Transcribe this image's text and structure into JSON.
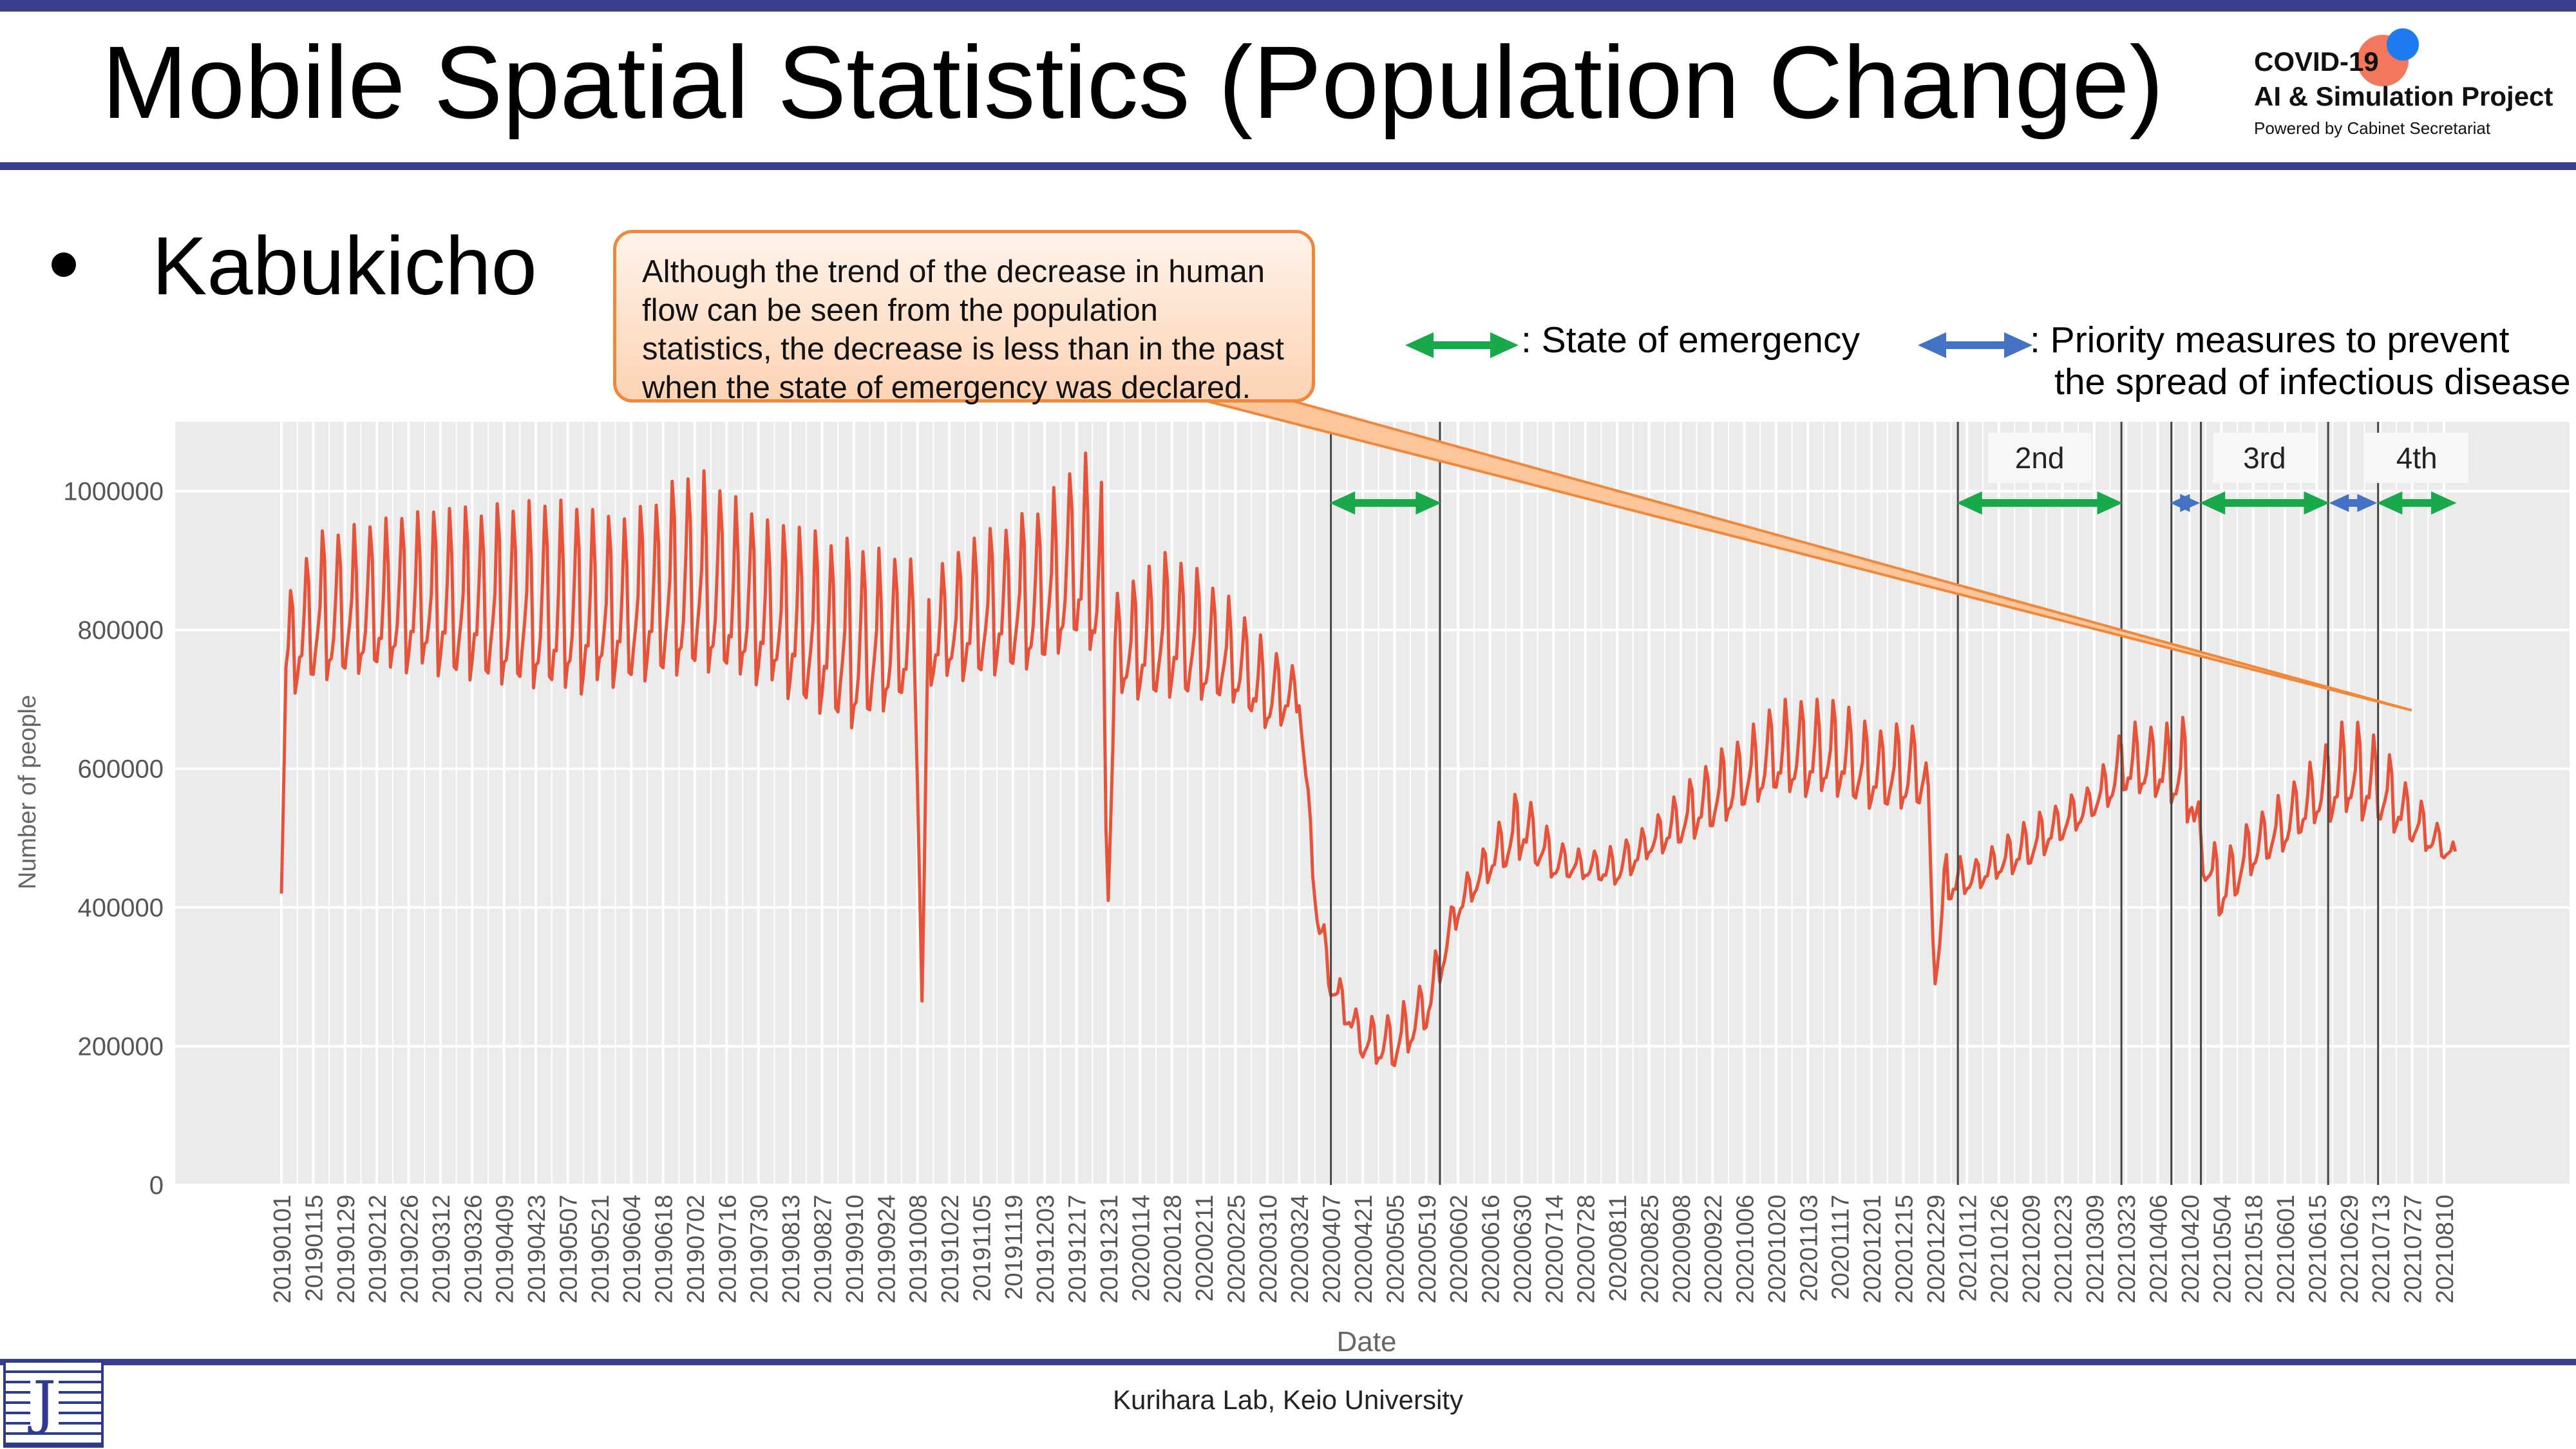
{
  "slide": {
    "title": "Mobile Spatial Statistics (Population Change)",
    "brand": {
      "line1": "COVID-19",
      "line2": "AI & Simulation Project",
      "line3": "Powered by Cabinet Secretariat",
      "red": "#f26b4f",
      "blue": "#1e7bf0"
    },
    "bullet": "Kabukicho",
    "callout_lines": [
      "Although the trend of the decrease in human",
      "flow can be seen from the population",
      "statistics, the decrease is less than in the past",
      "when the state of emergency was declared."
    ],
    "legend": {
      "emergency": ": State of emergency",
      "priority_line1": ": Priority measures to prevent",
      "priority_line2": "the spread of infectious disease",
      "emergency_color": "#19a84a",
      "priority_color": "#4472c4"
    },
    "footer": "Kurihara Lab, Keio University",
    "logo_text": "J"
  },
  "chart_data": {
    "type": "line",
    "xlabel": "Date",
    "ylabel": "Number of people",
    "ylim": [
      0,
      1100000
    ],
    "yticks": [
      0,
      200000,
      400000,
      600000,
      800000,
      1000000
    ],
    "ytick_labels": [
      "0",
      "200000",
      "400000",
      "600000",
      "800000",
      "1000000"
    ],
    "x_tick_labels": [
      "20190101",
      "20190115",
      "20190129",
      "20190212",
      "20190226",
      "20190312",
      "20190326",
      "20190409",
      "20190423",
      "20190507",
      "20190521",
      "20190604",
      "20190618",
      "20190702",
      "20190716",
      "20190730",
      "20190813",
      "20190827",
      "20190910",
      "20190924",
      "20191008",
      "20191022",
      "20191105",
      "20191119",
      "20191203",
      "20191217",
      "20191231",
      "20200114",
      "20200128",
      "20200211",
      "20200225",
      "20200310",
      "20200324",
      "20200407",
      "20200421",
      "20200505",
      "20200519",
      "20200602",
      "20200616",
      "20200630",
      "20200714",
      "20200728",
      "20200811",
      "20200825",
      "20200908",
      "20200922",
      "20201006",
      "20201020",
      "20201103",
      "20201117",
      "20201201",
      "20201215",
      "20201229",
      "20210112",
      "20210126",
      "20210209",
      "20210223",
      "20210309",
      "20210323",
      "20210406",
      "20210420",
      "20210504",
      "20210518",
      "20210601",
      "20210615",
      "20210629",
      "20210713",
      "20210727",
      "20210810"
    ],
    "series_color": "#e5533a",
    "grid": true,
    "background": "#ebebeb",
    "period_labels": [
      "2nd",
      "3rd",
      "4th"
    ],
    "emergency_periods": [
      [
        "20200407",
        "20200525"
      ],
      [
        "20210108",
        "20210321"
      ],
      [
        "20210425",
        "20210620"
      ],
      [
        "20210712",
        "20210815"
      ]
    ],
    "priority_periods": [
      [
        "20210412",
        "20210424"
      ],
      [
        "20210621",
        "20210711"
      ]
    ],
    "vertical_lines": [
      "20200407",
      "20200525",
      "20210108",
      "20210321",
      "20210412",
      "20210425",
      "20210620",
      "20210712"
    ],
    "series": [
      {
        "y_envelope": [
          [
            "20190101",
            420000,
            420000
          ],
          [
            "20190103",
            700000,
            840000
          ],
          [
            "20190115",
            720000,
            940000
          ],
          [
            "20190301",
            740000,
            970000
          ],
          [
            "20190501",
            700000,
            990000
          ],
          [
            "20190601",
            720000,
            960000
          ],
          [
            "20190702",
            730000,
            1040000
          ],
          [
            "20190801",
            720000,
            960000
          ],
          [
            "20190910",
            650000,
            930000
          ],
          [
            "20191007",
            700000,
            900000
          ],
          [
            "20191010",
            265000,
            265000
          ],
          [
            "20191013",
            720000,
            880000
          ],
          [
            "20191105",
            730000,
            940000
          ],
          [
            "20191201",
            740000,
            980000
          ],
          [
            "20191220",
            780000,
            1060000
          ],
          [
            "20191228",
            720000,
            1020000
          ],
          [
            "20191231",
            410000,
            410000
          ],
          [
            "20200103",
            700000,
            850000
          ],
          [
            "20200128",
            700000,
            920000
          ],
          [
            "20200225",
            690000,
            840000
          ],
          [
            "20200310",
            650000,
            780000
          ],
          [
            "20200324",
            680000,
            740000
          ],
          [
            "20200328",
            530000,
            570000
          ],
          [
            "20200401",
            360000,
            430000
          ],
          [
            "20200407",
            270000,
            320000
          ],
          [
            "20200421",
            180000,
            240000
          ],
          [
            "20200505",
            165000,
            250000
          ],
          [
            "20200519",
            220000,
            300000
          ],
          [
            "20200602",
            380000,
            430000
          ],
          [
            "20200616",
            440000,
            500000
          ],
          [
            "20200630",
            470000,
            580000
          ],
          [
            "20200714",
            440000,
            500000
          ],
          [
            "20200728",
            440000,
            480000
          ],
          [
            "20200811",
            430000,
            490000
          ],
          [
            "20200825",
            470000,
            520000
          ],
          [
            "20200922",
            510000,
            620000
          ],
          [
            "20201006",
            540000,
            650000
          ],
          [
            "20201020",
            560000,
            700000
          ],
          [
            "20201117",
            560000,
            700000
          ],
          [
            "20201201",
            540000,
            660000
          ],
          [
            "20201225",
            540000,
            670000
          ],
          [
            "20201229",
            290000,
            290000
          ],
          [
            "20210103",
            400000,
            500000
          ],
          [
            "20210112",
            420000,
            460000
          ],
          [
            "20210209",
            460000,
            530000
          ],
          [
            "20210309",
            530000,
            580000
          ],
          [
            "20210323",
            560000,
            670000
          ],
          [
            "20210406",
            560000,
            660000
          ],
          [
            "20210420",
            520000,
            680000
          ],
          [
            "20210425",
            450000,
            520000
          ],
          [
            "20210504",
            380000,
            480000
          ],
          [
            "20210518",
            450000,
            530000
          ],
          [
            "20210601",
            480000,
            570000
          ],
          [
            "20210615",
            520000,
            620000
          ],
          [
            "20210629",
            530000,
            680000
          ],
          [
            "20210713",
            520000,
            640000
          ],
          [
            "20210727",
            490000,
            570000
          ],
          [
            "20210815",
            460000,
            490000
          ]
        ]
      }
    ]
  }
}
